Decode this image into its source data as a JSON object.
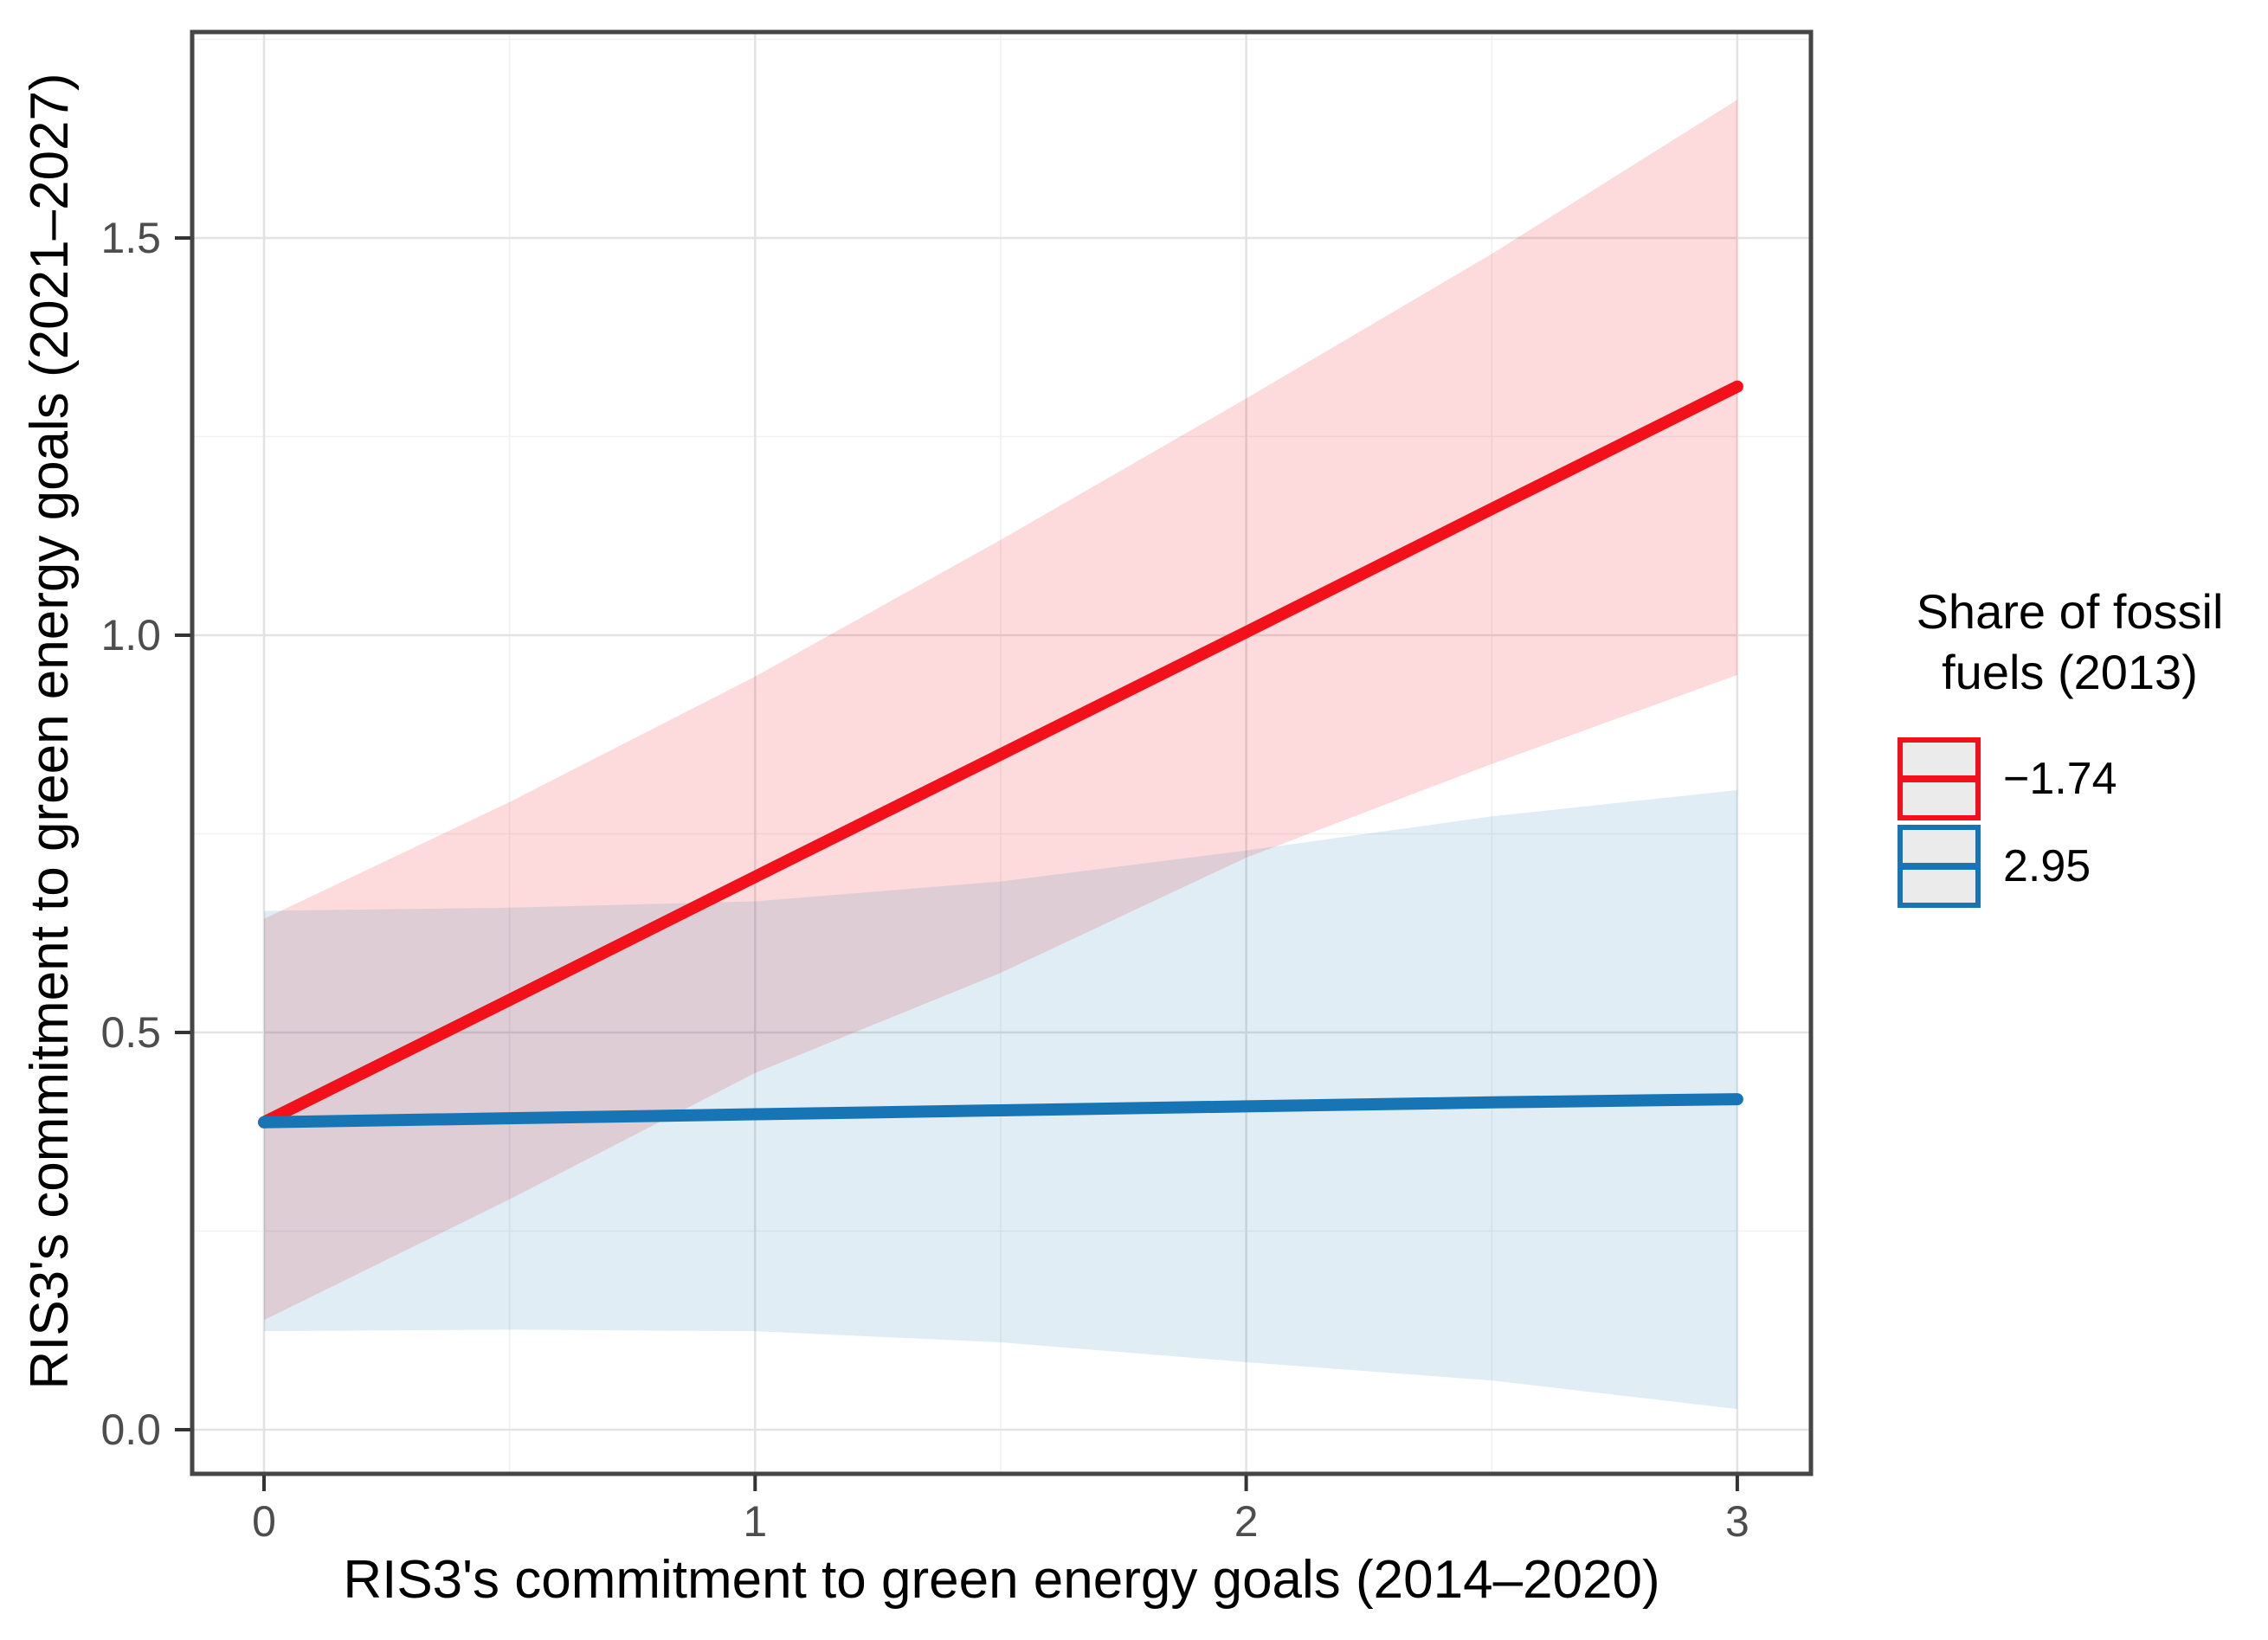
{
  "chart_data": {
    "type": "line",
    "title": "",
    "xlabel": "RIS3's commitment to green energy goals (2014–2020)",
    "ylabel": "RIS3's commitment to green energy goals (2021–2027)",
    "xlim": [
      -0.146,
      3.15
    ],
    "ylim": [
      -0.056,
      1.759
    ],
    "grid": "on",
    "x_ticks": {
      "major": [
        0,
        1,
        2,
        3
      ],
      "minor": [
        0.5,
        1.5,
        2.5
      ],
      "labels": [
        "0",
        "1",
        "2",
        "3"
      ]
    },
    "y_ticks": {
      "major": [
        0,
        0.5,
        1.0,
        1.5
      ],
      "minor": [
        0.25,
        0.75,
        1.25,
        1.75
      ],
      "labels": [
        "0.0",
        "0.5",
        "1.0",
        "1.5"
      ]
    },
    "x": [
      0,
      0.5,
      1,
      1.5,
      2,
      2.5,
      3
    ],
    "series": [
      {
        "name": "−1.74",
        "color": "#F2111A",
        "band_color": "rgba(242,17,26,0.155)",
        "values": [
          0.387,
          0.541,
          0.696,
          0.85,
          1.004,
          1.159,
          1.313
        ],
        "band_upper": [
          0.643,
          0.79,
          0.948,
          1.12,
          1.298,
          1.48,
          1.674
        ],
        "band_lower": [
          0.138,
          0.29,
          0.449,
          0.575,
          0.72,
          0.838,
          0.95
        ]
      },
      {
        "name": "2.95",
        "color": "#1775B5",
        "band_color": "rgba(23,117,181,0.135)",
        "values": [
          0.387,
          0.392,
          0.397,
          0.402,
          0.407,
          0.412,
          0.416
        ],
        "band_upper": [
          0.653,
          0.657,
          0.665,
          0.69,
          0.729,
          0.772,
          0.805
        ],
        "band_lower": [
          0.124,
          0.126,
          0.124,
          0.11,
          0.085,
          0.062,
          0.026
        ]
      }
    ],
    "legend": {
      "position": "right",
      "title_lines": [
        "Share of fossil",
        "fuels (2013)"
      ],
      "key_fill": "#ebebeb"
    },
    "colors": {
      "grid_major": "#e3e3e3",
      "grid_minor": "#f1f1f1",
      "panel_border": "#454545",
      "tick_mark": "#333333",
      "tick_label": "#4d4d4d",
      "axis_title": "#000000"
    }
  }
}
